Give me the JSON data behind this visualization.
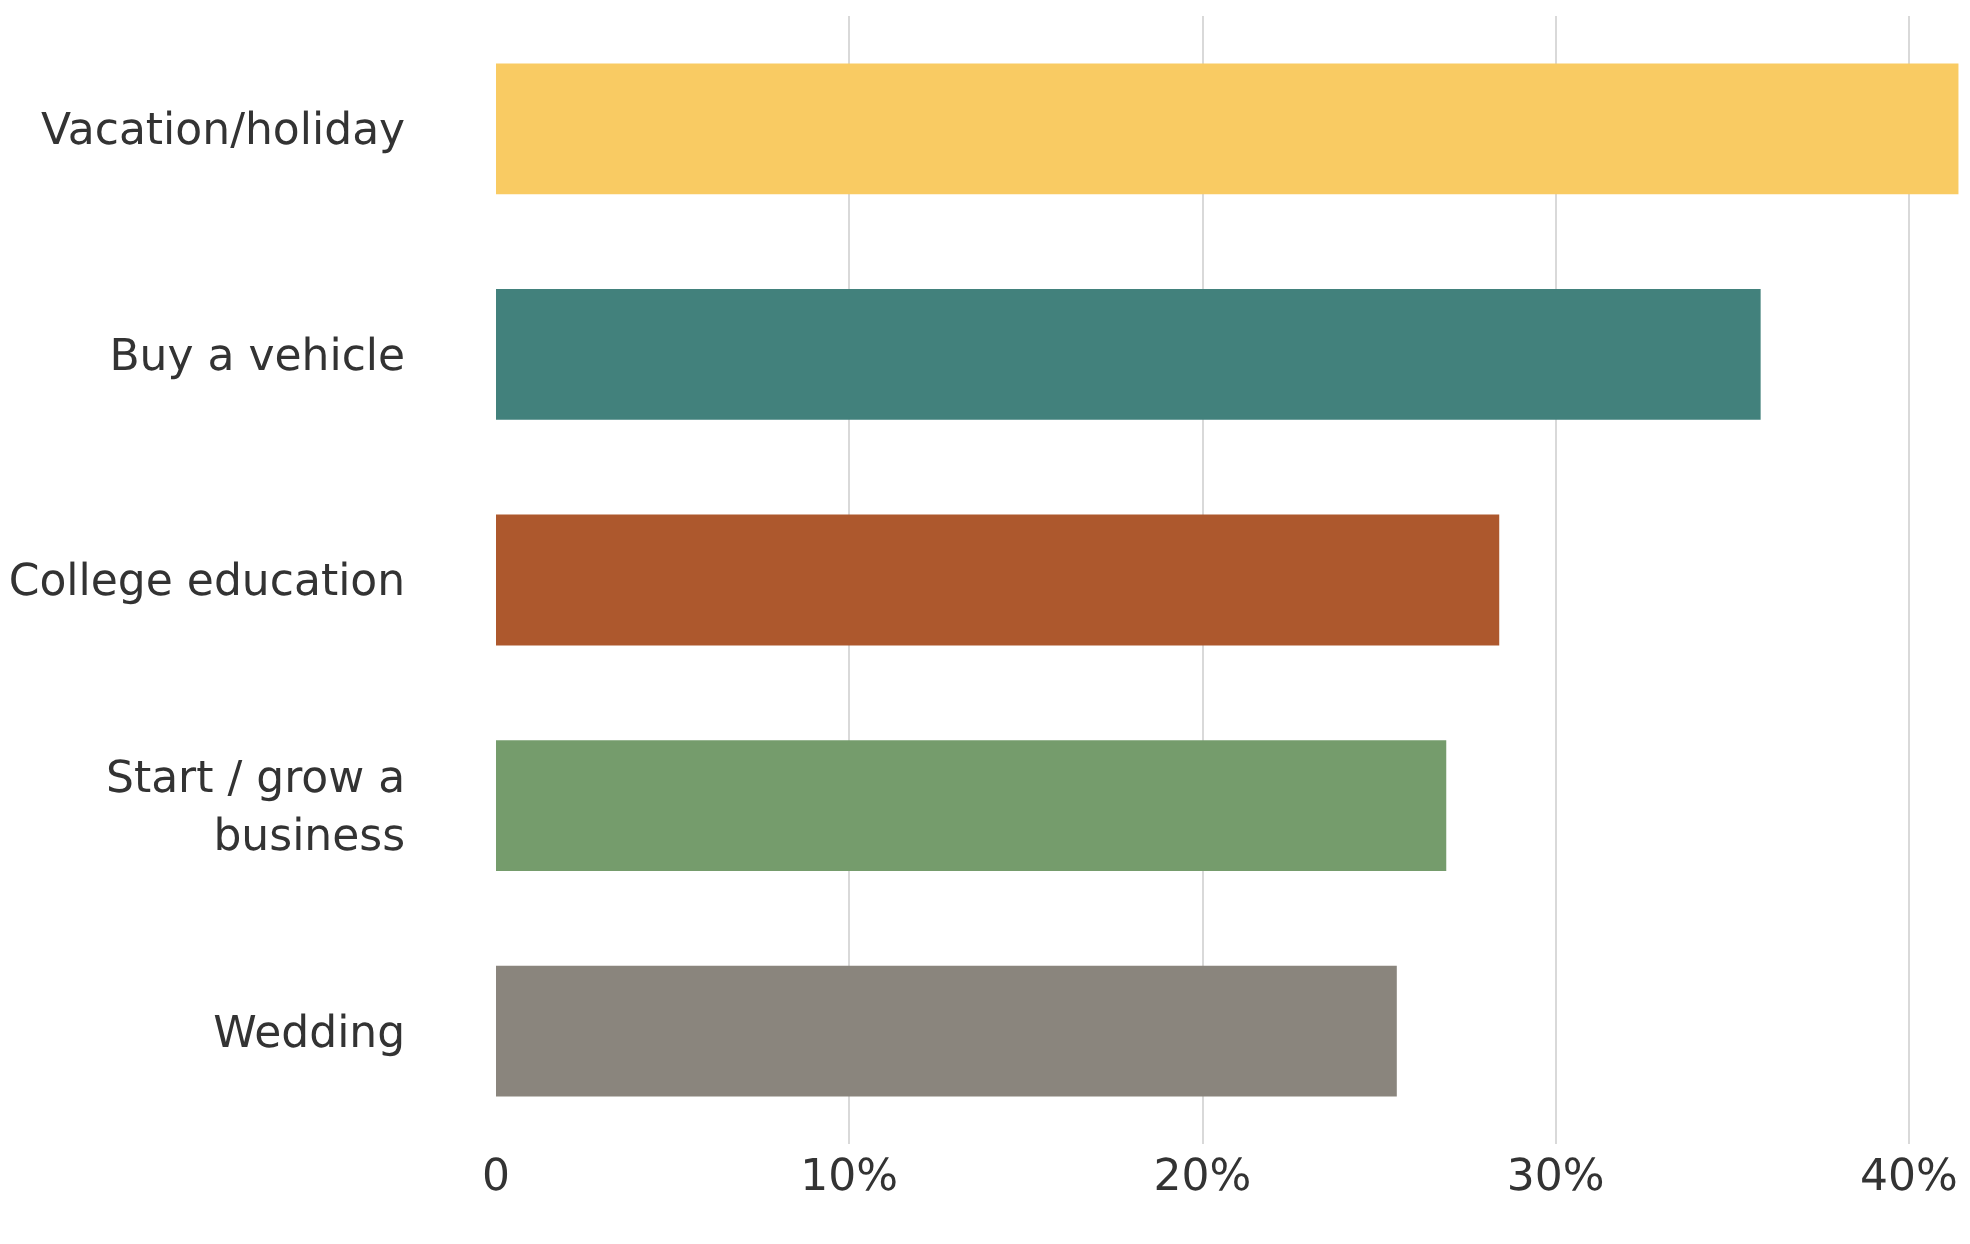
{
  "chart_data": {
    "type": "bar",
    "orientation": "horizontal",
    "categories": [
      "Vacation/holiday",
      "Buy a vehicle",
      "College education",
      "Start / grow a\nbusiness",
      "Wedding"
    ],
    "values": [
      41.4,
      35.8,
      28.4,
      26.9,
      25.5
    ],
    "colors": [
      "#f9cb63",
      "#42817c",
      "#ad582d",
      "#759c6c",
      "#8a857d"
    ],
    "xlim": [
      0,
      41.5
    ],
    "xticks": [
      0,
      {
        "value": 10,
        "label": "10%"
      },
      {
        "value": 20,
        "label": "20%"
      },
      {
        "value": 30,
        "label": "30%"
      },
      {
        "value": 40,
        "label": "40%"
      }
    ],
    "grid": "x",
    "legend": false
  }
}
